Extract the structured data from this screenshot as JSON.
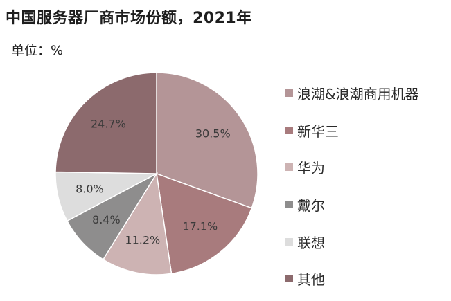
{
  "header": {
    "title": "中国服务器厂商市场份额，2021年",
    "unit": "单位：%"
  },
  "chart_data": {
    "type": "pie",
    "title": "中国服务器厂商市场份额，2021年",
    "categories": [
      "浪潮&浪潮商用机器",
      "新华三",
      "华为",
      "戴尔",
      "联想",
      "其他"
    ],
    "values": [
      30.5,
      17.1,
      11.2,
      8.4,
      8.0,
      24.7
    ],
    "labels": [
      "30.5%",
      "17.1%",
      "11.2%",
      "8.4%",
      "8.0%",
      "24.7%"
    ],
    "colors": [
      "#b49597",
      "#a87b7d",
      "#cdb3b3",
      "#8e8d8d",
      "#dddddd",
      "#8c6a6d"
    ],
    "start_angle": "12 o'clock",
    "direction": "clockwise",
    "legend_position": "right"
  }
}
